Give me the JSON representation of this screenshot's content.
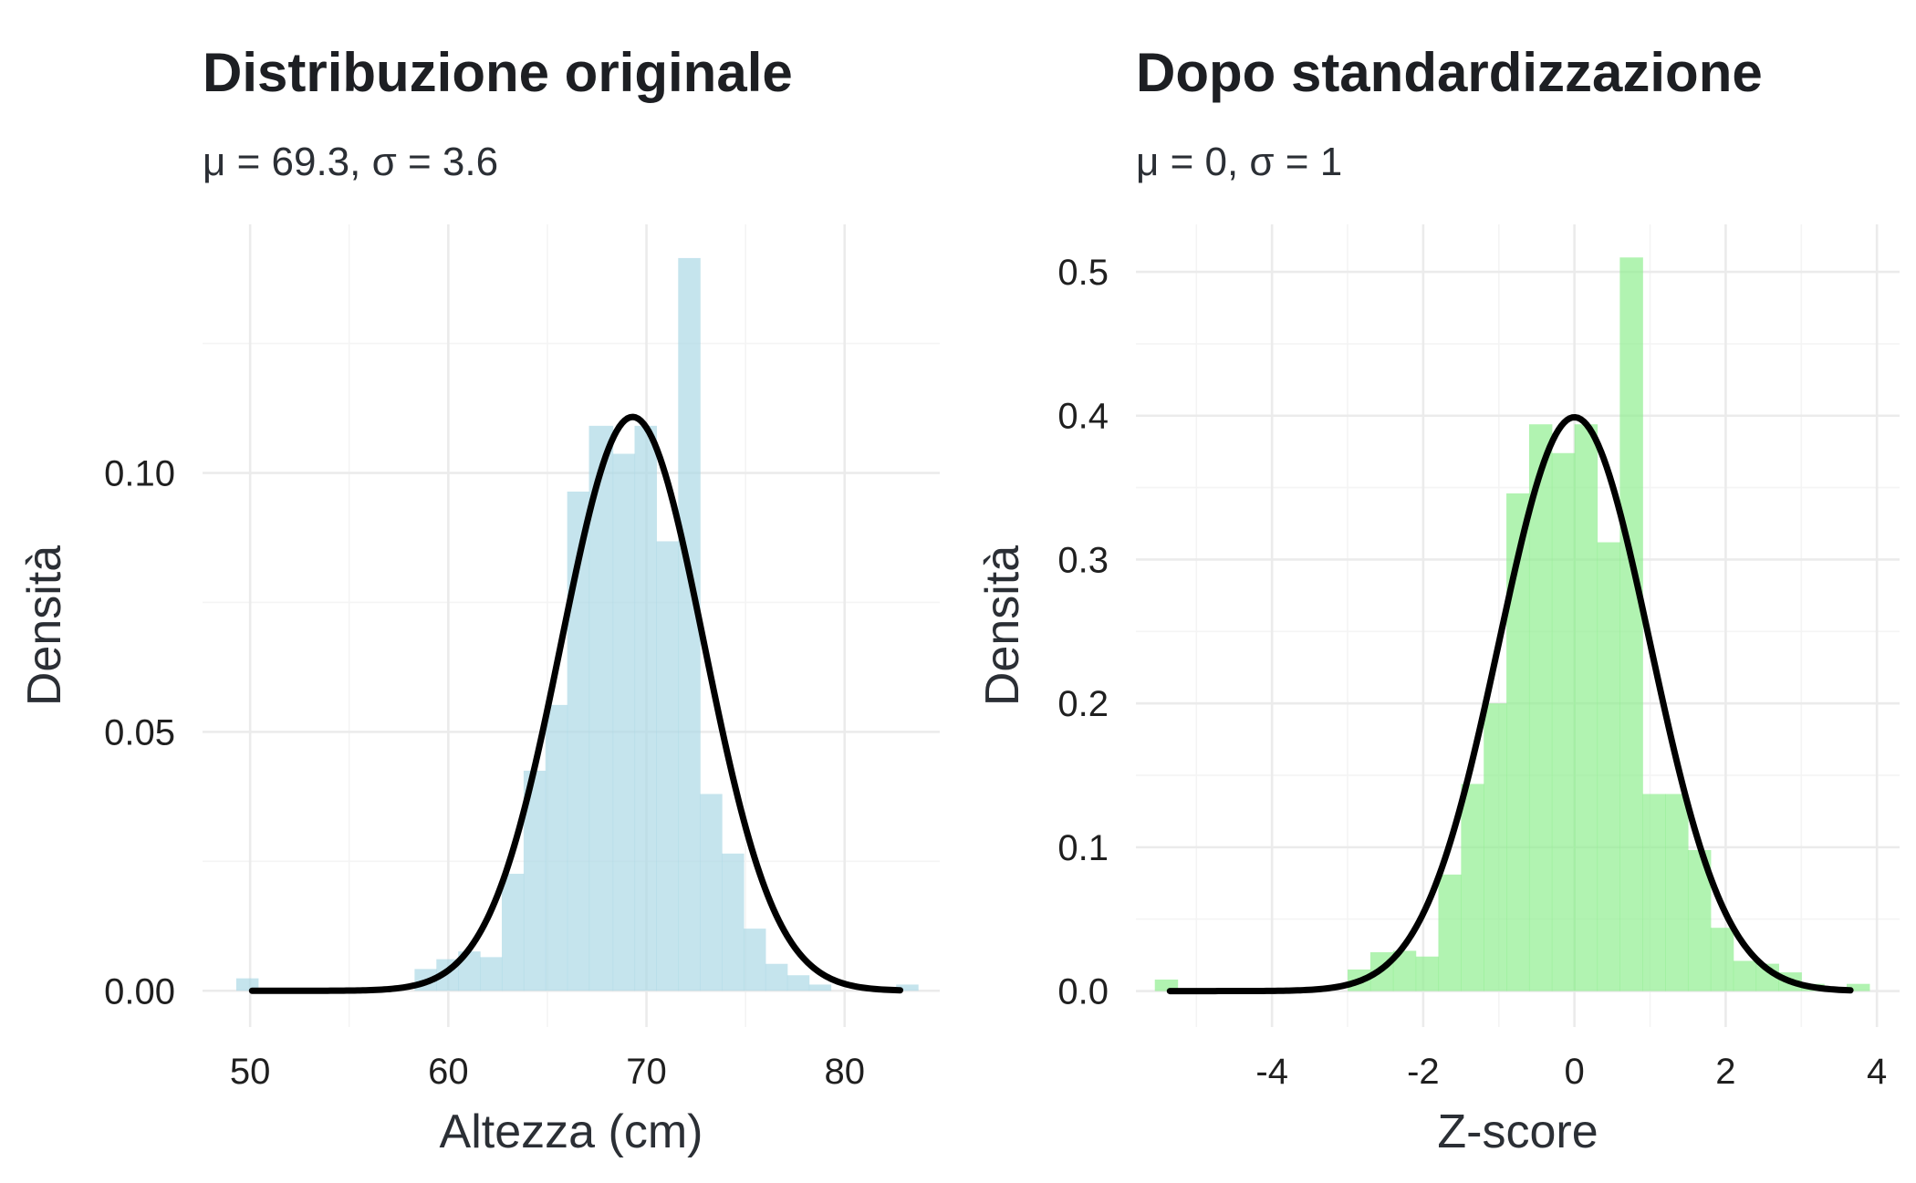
{
  "chart_data": [
    {
      "type": "histogram",
      "title": "Distribuzione originale",
      "subtitle": "μ = 69.3, σ = 3.6",
      "xlabel": "Altezza (cm)",
      "ylabel": "Densità",
      "xlim": [
        47.6,
        84.8
      ],
      "ylim": [
        -0.007,
        0.148
      ],
      "x_ticks": [
        50,
        60,
        70,
        80
      ],
      "x_tick_labels": [
        "50",
        "60",
        "70",
        "80"
      ],
      "x_minor_ticks": [
        55,
        65,
        75
      ],
      "y_ticks": [
        0.0,
        0.05,
        0.1
      ],
      "y_tick_labels": [
        "0.00",
        "0.05",
        "0.10"
      ],
      "y_minor_ticks": [
        0.025,
        0.075,
        0.125
      ],
      "bar_color": "#add8e6",
      "bars": [
        {
          "x0": 49.3,
          "x1": 50.4,
          "density": 0.0024
        },
        {
          "x0": 58.3,
          "x1": 59.4,
          "density": 0.0042
        },
        {
          "x0": 59.4,
          "x1": 60.5,
          "density": 0.0061
        },
        {
          "x0": 60.5,
          "x1": 61.6,
          "density": 0.0076
        },
        {
          "x0": 61.6,
          "x1": 62.7,
          "density": 0.0065
        },
        {
          "x0": 62.7,
          "x1": 63.8,
          "density": 0.0226
        },
        {
          "x0": 63.8,
          "x1": 64.9,
          "density": 0.0425
        },
        {
          "x0": 64.9,
          "x1": 66.0,
          "density": 0.0552
        },
        {
          "x0": 66.0,
          "x1": 67.1,
          "density": 0.0964
        },
        {
          "x0": 67.1,
          "x1": 68.3,
          "density": 0.1091
        },
        {
          "x0": 68.3,
          "x1": 69.4,
          "density": 0.1037
        },
        {
          "x0": 69.4,
          "x1": 70.5,
          "density": 0.1091
        },
        {
          "x0": 70.5,
          "x1": 71.6,
          "density": 0.0868
        },
        {
          "x0": 71.6,
          "x1": 72.7,
          "density": 0.1415
        },
        {
          "x0": 72.7,
          "x1": 73.8,
          "density": 0.038
        },
        {
          "x0": 73.8,
          "x1": 74.9,
          "density": 0.0265
        },
        {
          "x0": 74.9,
          "x1": 76.0,
          "density": 0.012
        },
        {
          "x0": 76.0,
          "x1": 77.1,
          "density": 0.0052
        },
        {
          "x0": 77.1,
          "x1": 78.2,
          "density": 0.003
        },
        {
          "x0": 78.2,
          "x1": 79.3,
          "density": 0.0012
        },
        {
          "x0": 82.6,
          "x1": 83.7,
          "density": 0.0012
        }
      ],
      "curve": {
        "type": "normal",
        "mean": 69.3,
        "sd": 3.6,
        "x_from": 50.1,
        "x_to": 82.8,
        "color": "#000000"
      }
    },
    {
      "type": "histogram",
      "title": "Dopo standardizzazione",
      "subtitle": "μ = 0, σ = 1",
      "xlabel": "Z-score",
      "ylabel": "Densità",
      "xlim": [
        -5.8,
        4.3
      ],
      "ylim": [
        -0.025,
        0.533
      ],
      "x_ticks": [
        -4,
        -2,
        0,
        2,
        4
      ],
      "x_tick_labels": [
        "-4",
        "-2",
        "0",
        "2",
        "4"
      ],
      "x_minor_ticks": [
        -5,
        -3,
        -1,
        1,
        3
      ],
      "y_ticks": [
        0.0,
        0.1,
        0.2,
        0.3,
        0.4,
        0.5
      ],
      "y_tick_labels": [
        "0.0",
        "0.1",
        "0.2",
        "0.3",
        "0.4",
        "0.5"
      ],
      "y_minor_ticks": [
        0.05,
        0.15,
        0.25,
        0.35,
        0.45
      ],
      "bar_color": "#90ee90",
      "bars": [
        {
          "x0": -5.55,
          "x1": -5.25,
          "density": 0.008
        },
        {
          "x0": -3.0,
          "x1": -2.7,
          "density": 0.015
        },
        {
          "x0": -2.7,
          "x1": -2.4,
          "density": 0.027
        },
        {
          "x0": -2.4,
          "x1": -2.1,
          "density": 0.028
        },
        {
          "x0": -2.1,
          "x1": -1.8,
          "density": 0.024
        },
        {
          "x0": -1.8,
          "x1": -1.5,
          "density": 0.081
        },
        {
          "x0": -1.5,
          "x1": -1.2,
          "density": 0.144
        },
        {
          "x0": -1.2,
          "x1": -0.9,
          "density": 0.2
        },
        {
          "x0": -0.9,
          "x1": -0.6,
          "density": 0.346
        },
        {
          "x0": -0.6,
          "x1": -0.3,
          "density": 0.394
        },
        {
          "x0": -0.3,
          "x1": 0.0,
          "density": 0.374
        },
        {
          "x0": 0.0,
          "x1": 0.3,
          "density": 0.394
        },
        {
          "x0": 0.3,
          "x1": 0.6,
          "density": 0.312
        },
        {
          "x0": 0.6,
          "x1": 0.9,
          "density": 0.51
        },
        {
          "x0": 0.9,
          "x1": 1.2,
          "density": 0.137
        },
        {
          "x0": 1.2,
          "x1": 1.5,
          "density": 0.137
        },
        {
          "x0": 1.5,
          "x1": 1.8,
          "density": 0.098
        },
        {
          "x0": 1.8,
          "x1": 2.1,
          "density": 0.044
        },
        {
          "x0": 2.1,
          "x1": 2.4,
          "density": 0.021
        },
        {
          "x0": 2.4,
          "x1": 2.7,
          "density": 0.019
        },
        {
          "x0": 2.7,
          "x1": 3.0,
          "density": 0.013
        },
        {
          "x0": 3.0,
          "x1": 3.3,
          "density": 0.005
        },
        {
          "x0": 3.3,
          "x1": 3.6,
          "density": 0.002
        },
        {
          "x0": 3.6,
          "x1": 3.9,
          "density": 0.005
        }
      ],
      "curve": {
        "type": "normal",
        "mean": 0,
        "sd": 1,
        "x_from": -5.35,
        "x_to": 3.65,
        "color": "#000000"
      }
    }
  ]
}
